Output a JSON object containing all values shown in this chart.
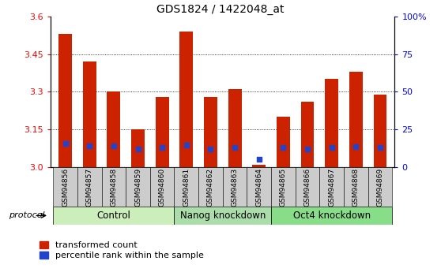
{
  "title": "GDS1824 / 1422048_at",
  "samples": [
    "GSM94856",
    "GSM94857",
    "GSM94858",
    "GSM94859",
    "GSM94860",
    "GSM94861",
    "GSM94862",
    "GSM94863",
    "GSM94864",
    "GSM94865",
    "GSM94866",
    "GSM94867",
    "GSM94868",
    "GSM94869"
  ],
  "transformed_count": [
    3.53,
    3.42,
    3.3,
    3.15,
    3.28,
    3.54,
    3.28,
    3.31,
    3.01,
    3.2,
    3.26,
    3.35,
    3.38,
    3.29
  ],
  "percentile_rank": [
    16,
    14,
    14,
    12,
    13,
    14.5,
    12,
    13,
    5.5,
    13,
    12,
    13,
    13.5,
    13
  ],
  "groups": [
    {
      "label": "Control",
      "start": 0,
      "end": 5,
      "color": "#cceebb"
    },
    {
      "label": "Nanog knockdown",
      "start": 5,
      "end": 9,
      "color": "#aaddaa"
    },
    {
      "label": "Oct4 knockdown",
      "start": 9,
      "end": 14,
      "color": "#88dd88"
    }
  ],
  "ylim_left": [
    3.0,
    3.6
  ],
  "ylim_right": [
    0,
    100
  ],
  "yticks_left": [
    3.0,
    3.15,
    3.3,
    3.45,
    3.6
  ],
  "yticks_right": [
    0,
    25,
    50,
    75,
    100
  ],
  "ytick_labels_right": [
    "0",
    "25",
    "50",
    "75",
    "100%"
  ],
  "bar_color": "#cc2200",
  "dot_color": "#2244cc",
  "bar_bottom": 3.0,
  "bar_width": 0.55,
  "legend_red": "transformed count",
  "legend_blue": "percentile rank within the sample",
  "protocol_label": "protocol",
  "title_fontsize": 10,
  "tick_label_fontsize": 8,
  "group_label_fontsize": 8.5,
  "xlim": [
    -0.6,
    13.6
  ]
}
